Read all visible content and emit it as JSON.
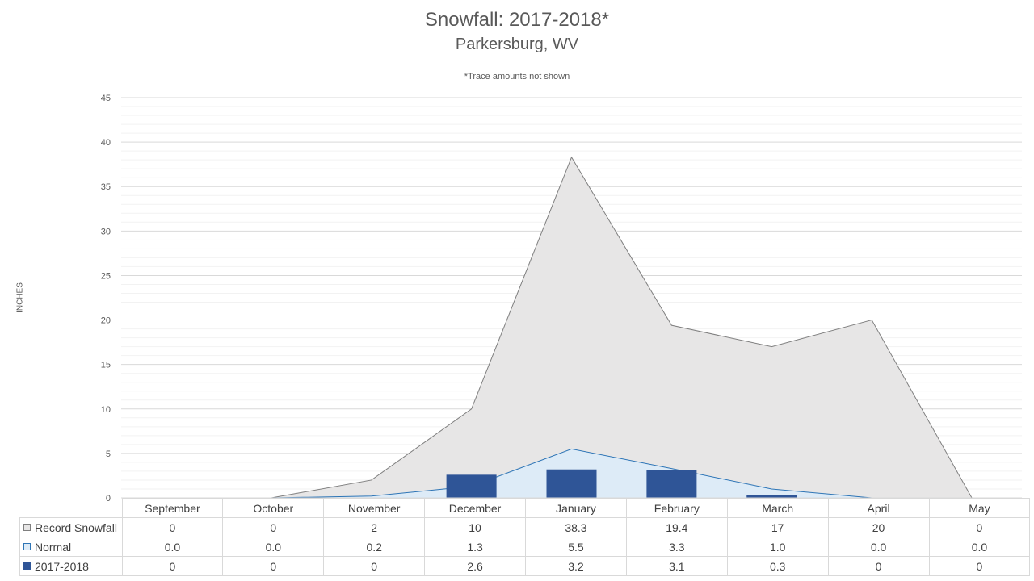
{
  "chart_data": {
    "type": "bar",
    "title": "Snowfall: 2017-2018*",
    "subtitle": "Parkersburg, WV",
    "note": "*Trace amounts not shown",
    "ylabel": "INCHES",
    "ylim": [
      0,
      45
    ],
    "yticks": [
      0,
      5,
      10,
      15,
      20,
      25,
      30,
      35,
      40,
      45
    ],
    "grid": true,
    "legend": "data-table",
    "categories": [
      "September",
      "October",
      "November",
      "December",
      "January",
      "February",
      "March",
      "April",
      "May"
    ],
    "series": [
      {
        "name": "Record Snowfall",
        "type": "area",
        "color": "#e7e6e6",
        "line_color": "#7f7f7f",
        "values": [
          0,
          0,
          2,
          10,
          38.3,
          19.4,
          17,
          20,
          0
        ],
        "labels": [
          "0",
          "0",
          "2",
          "10",
          "38.3",
          "19.4",
          "17",
          "20",
          "0"
        ]
      },
      {
        "name": "Normal",
        "type": "area",
        "color": "#ddebf7",
        "line_color": "#2e75b6",
        "values": [
          0.0,
          0.0,
          0.2,
          1.3,
          5.5,
          3.3,
          1.0,
          0.0,
          0.0
        ],
        "labels": [
          "0.0",
          "0.0",
          "0.2",
          "1.3",
          "5.5",
          "3.3",
          "1.0",
          "0.0",
          "0.0"
        ]
      },
      {
        "name": "2017-2018",
        "type": "bar",
        "color": "#2f5597",
        "values": [
          0,
          0,
          0,
          2.6,
          3.2,
          3.1,
          0.3,
          0,
          0
        ],
        "labels": [
          "0",
          "0",
          "0",
          "2.6",
          "3.2",
          "3.1",
          "0.3",
          "0",
          "0"
        ]
      }
    ]
  }
}
